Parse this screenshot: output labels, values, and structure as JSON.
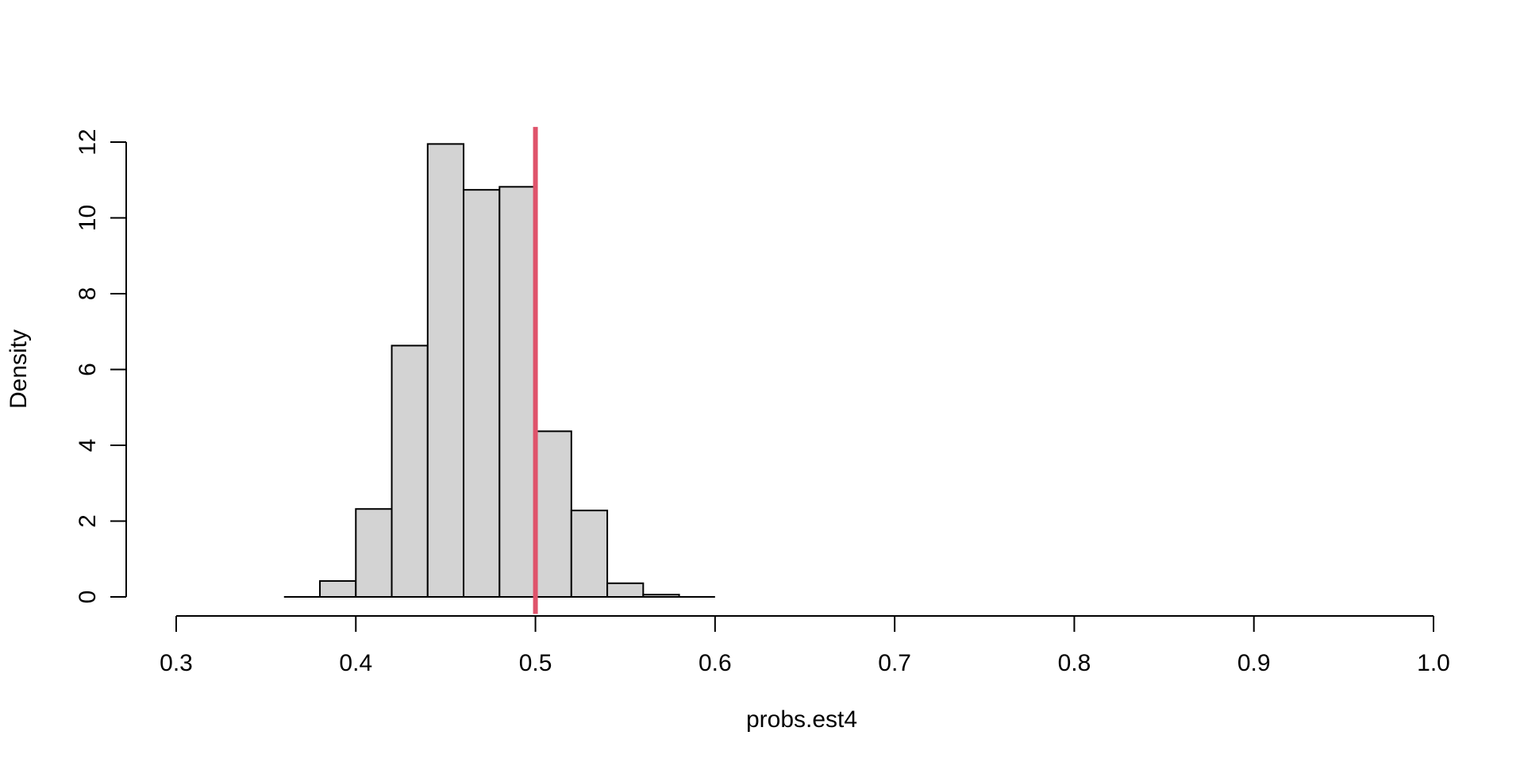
{
  "chart_data": {
    "type": "bar",
    "title": "",
    "xlabel": "probs.est4",
    "ylabel": "Density",
    "xlim": [
      0.3,
      1.0
    ],
    "ylim": [
      0,
      12
    ],
    "xticks": [
      "0.3",
      "0.4",
      "0.5",
      "0.6",
      "0.7",
      "0.8",
      "0.9",
      "1.0"
    ],
    "yticks": [
      "0",
      "2",
      "4",
      "6",
      "8",
      "10",
      "12"
    ],
    "bins": [
      {
        "x0": 0.36,
        "x1": 0.38,
        "value": 0.0
      },
      {
        "x0": 0.38,
        "x1": 0.4,
        "value": 0.42
      },
      {
        "x0": 0.4,
        "x1": 0.42,
        "value": 2.32
      },
      {
        "x0": 0.42,
        "x1": 0.44,
        "value": 6.63
      },
      {
        "x0": 0.44,
        "x1": 0.46,
        "value": 11.95
      },
      {
        "x0": 0.46,
        "x1": 0.48,
        "value": 10.74
      },
      {
        "x0": 0.48,
        "x1": 0.5,
        "value": 10.82
      },
      {
        "x0": 0.5,
        "x1": 0.52,
        "value": 4.37
      },
      {
        "x0": 0.52,
        "x1": 0.54,
        "value": 2.28
      },
      {
        "x0": 0.54,
        "x1": 0.56,
        "value": 0.36
      },
      {
        "x0": 0.56,
        "x1": 0.58,
        "value": 0.06
      },
      {
        "x0": 0.58,
        "x1": 0.6,
        "value": 0.0
      }
    ],
    "reference_line": {
      "x": 0.5,
      "color": "#df536b"
    },
    "bar_color": "#d3d3d3",
    "grid": false,
    "legend": "none"
  }
}
